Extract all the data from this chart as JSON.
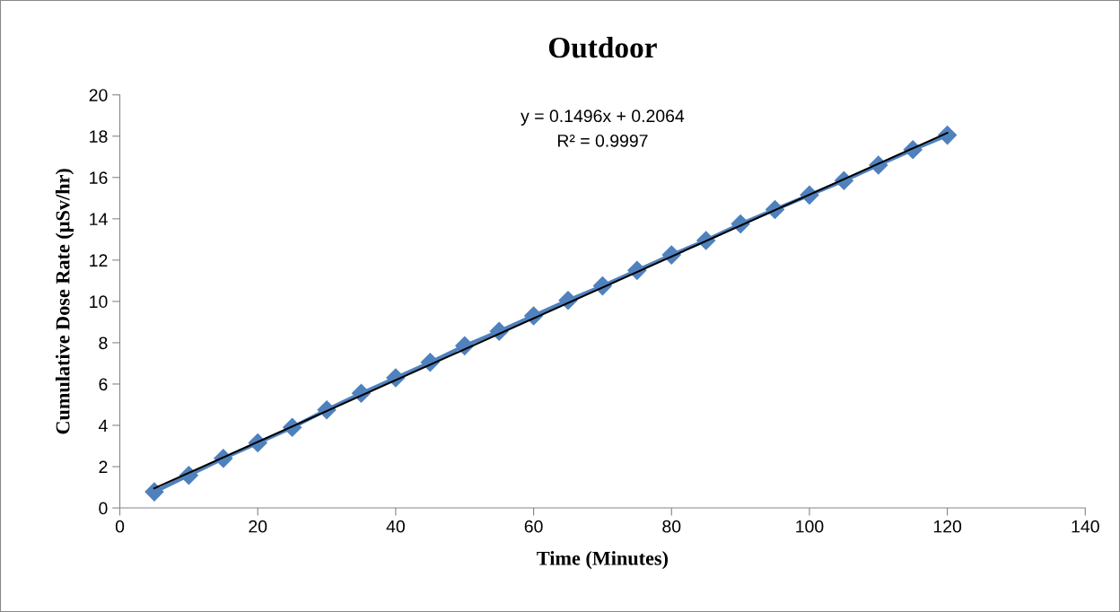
{
  "chart_data": {
    "type": "line",
    "title": "Outdoor",
    "xlabel": "Time (Minutes)",
    "ylabel": "Cumulative Dose Rate (µSv/hr)",
    "x": [
      5,
      10,
      15,
      20,
      25,
      30,
      35,
      40,
      45,
      50,
      55,
      60,
      65,
      70,
      75,
      80,
      85,
      90,
      95,
      100,
      105,
      110,
      115,
      120
    ],
    "series": [
      {
        "color": "#4f81bd",
        "marker": "diamond",
        "values": [
          0.78,
          1.58,
          2.4,
          3.15,
          3.9,
          4.75,
          5.55,
          6.3,
          7.05,
          7.85,
          8.55,
          9.3,
          10.05,
          10.75,
          11.5,
          12.25,
          12.95,
          13.75,
          14.45,
          15.15,
          15.85,
          16.6,
          17.35,
          18.05
        ]
      },
      {
        "color": "#000000",
        "marker": "none",
        "x": [
          5,
          120
        ],
        "values": [
          0.95,
          18.16
        ]
      }
    ],
    "annotations": [
      "y = 0.1496x + 0.2064",
      "R² = 0.9997"
    ],
    "xlim": [
      0,
      140
    ],
    "xticks": [
      0,
      20,
      40,
      60,
      80,
      100,
      120,
      140
    ],
    "ylim": [
      0,
      20
    ],
    "yticks": [
      0,
      2,
      4,
      6,
      8,
      10,
      12,
      14,
      16,
      18,
      20
    ],
    "grid": false,
    "legend": false
  }
}
